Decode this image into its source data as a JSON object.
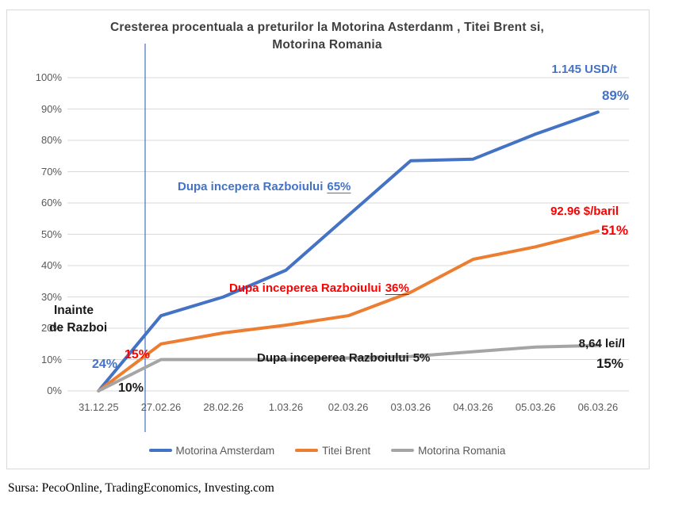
{
  "title": {
    "line1": "Cresterea procentuala a preturilor la Motorina Asterdanm , Titei Brent si,",
    "line2": "Motorina Romania"
  },
  "source": "Sursa: PecoOnline, TradingEconomics, Investing.com",
  "colors": {
    "series_blue": "#4472C4",
    "series_orange": "#ED7D31",
    "series_gray": "#A5A5A5",
    "annotation_blue": "#4472C4",
    "annotation_red": "#FF0000",
    "annotation_black": "#1A1A1A",
    "grid": "#D9D9D9",
    "axis_text": "#595959",
    "war_line": "#4472C4"
  },
  "chart_data": {
    "type": "line",
    "categories": [
      "31.12.25",
      "27.02.26",
      "28.02.26",
      "1.03.26",
      "02.03.26",
      "03.03.26",
      "04.03.26",
      "05.03.26",
      "06.03.26"
    ],
    "series": [
      {
        "name": "Motorina Amsterdam",
        "color_key": "series_blue",
        "values": [
          0,
          24,
          30,
          38.5,
          56,
          73.5,
          74,
          82,
          89
        ]
      },
      {
        "name": "Titei Brent",
        "color_key": "series_orange",
        "values": [
          0,
          15,
          18.5,
          21,
          24,
          31.5,
          42,
          46,
          51
        ]
      },
      {
        "name": "Motorina Romania",
        "color_key": "series_gray",
        "values": [
          0,
          10,
          10,
          10,
          10.5,
          11,
          12.5,
          14,
          14.5
        ]
      }
    ],
    "ylim": [
      0,
      100
    ],
    "ytick_step": 10,
    "ytick_labels": [
      "0%",
      "10%",
      "20%",
      "30%",
      "40%",
      "50%",
      "60%",
      "70%",
      "80%",
      "90%",
      "100%"
    ],
    "grid": true,
    "legend_position": "bottom",
    "vertical_marker_between": [
      "31.12.25",
      "27.02.26"
    ],
    "annotations": {
      "before_war_label": {
        "line1": "Inainte",
        "line2": "de Razboi"
      },
      "before_war_values": {
        "amsterdam": "24%",
        "brent": "15%",
        "romania": "10%"
      },
      "after_war": {
        "amsterdam": {
          "prefix": "Dupa incepera Razboiului",
          "value": "65%"
        },
        "brent": {
          "prefix": "Dupa inceperea Razboiului",
          "value": "36%"
        },
        "romania": {
          "prefix": "Dupa inceperea Razboiului",
          "value": "5%"
        }
      },
      "final": {
        "amsterdam": {
          "price": "1.145 USD/t",
          "pct": "89%"
        },
        "brent": {
          "price": "92.96 $/baril",
          "pct": "51%"
        },
        "romania": {
          "price": "8,64 lei/l",
          "pct": "15%"
        }
      }
    }
  }
}
